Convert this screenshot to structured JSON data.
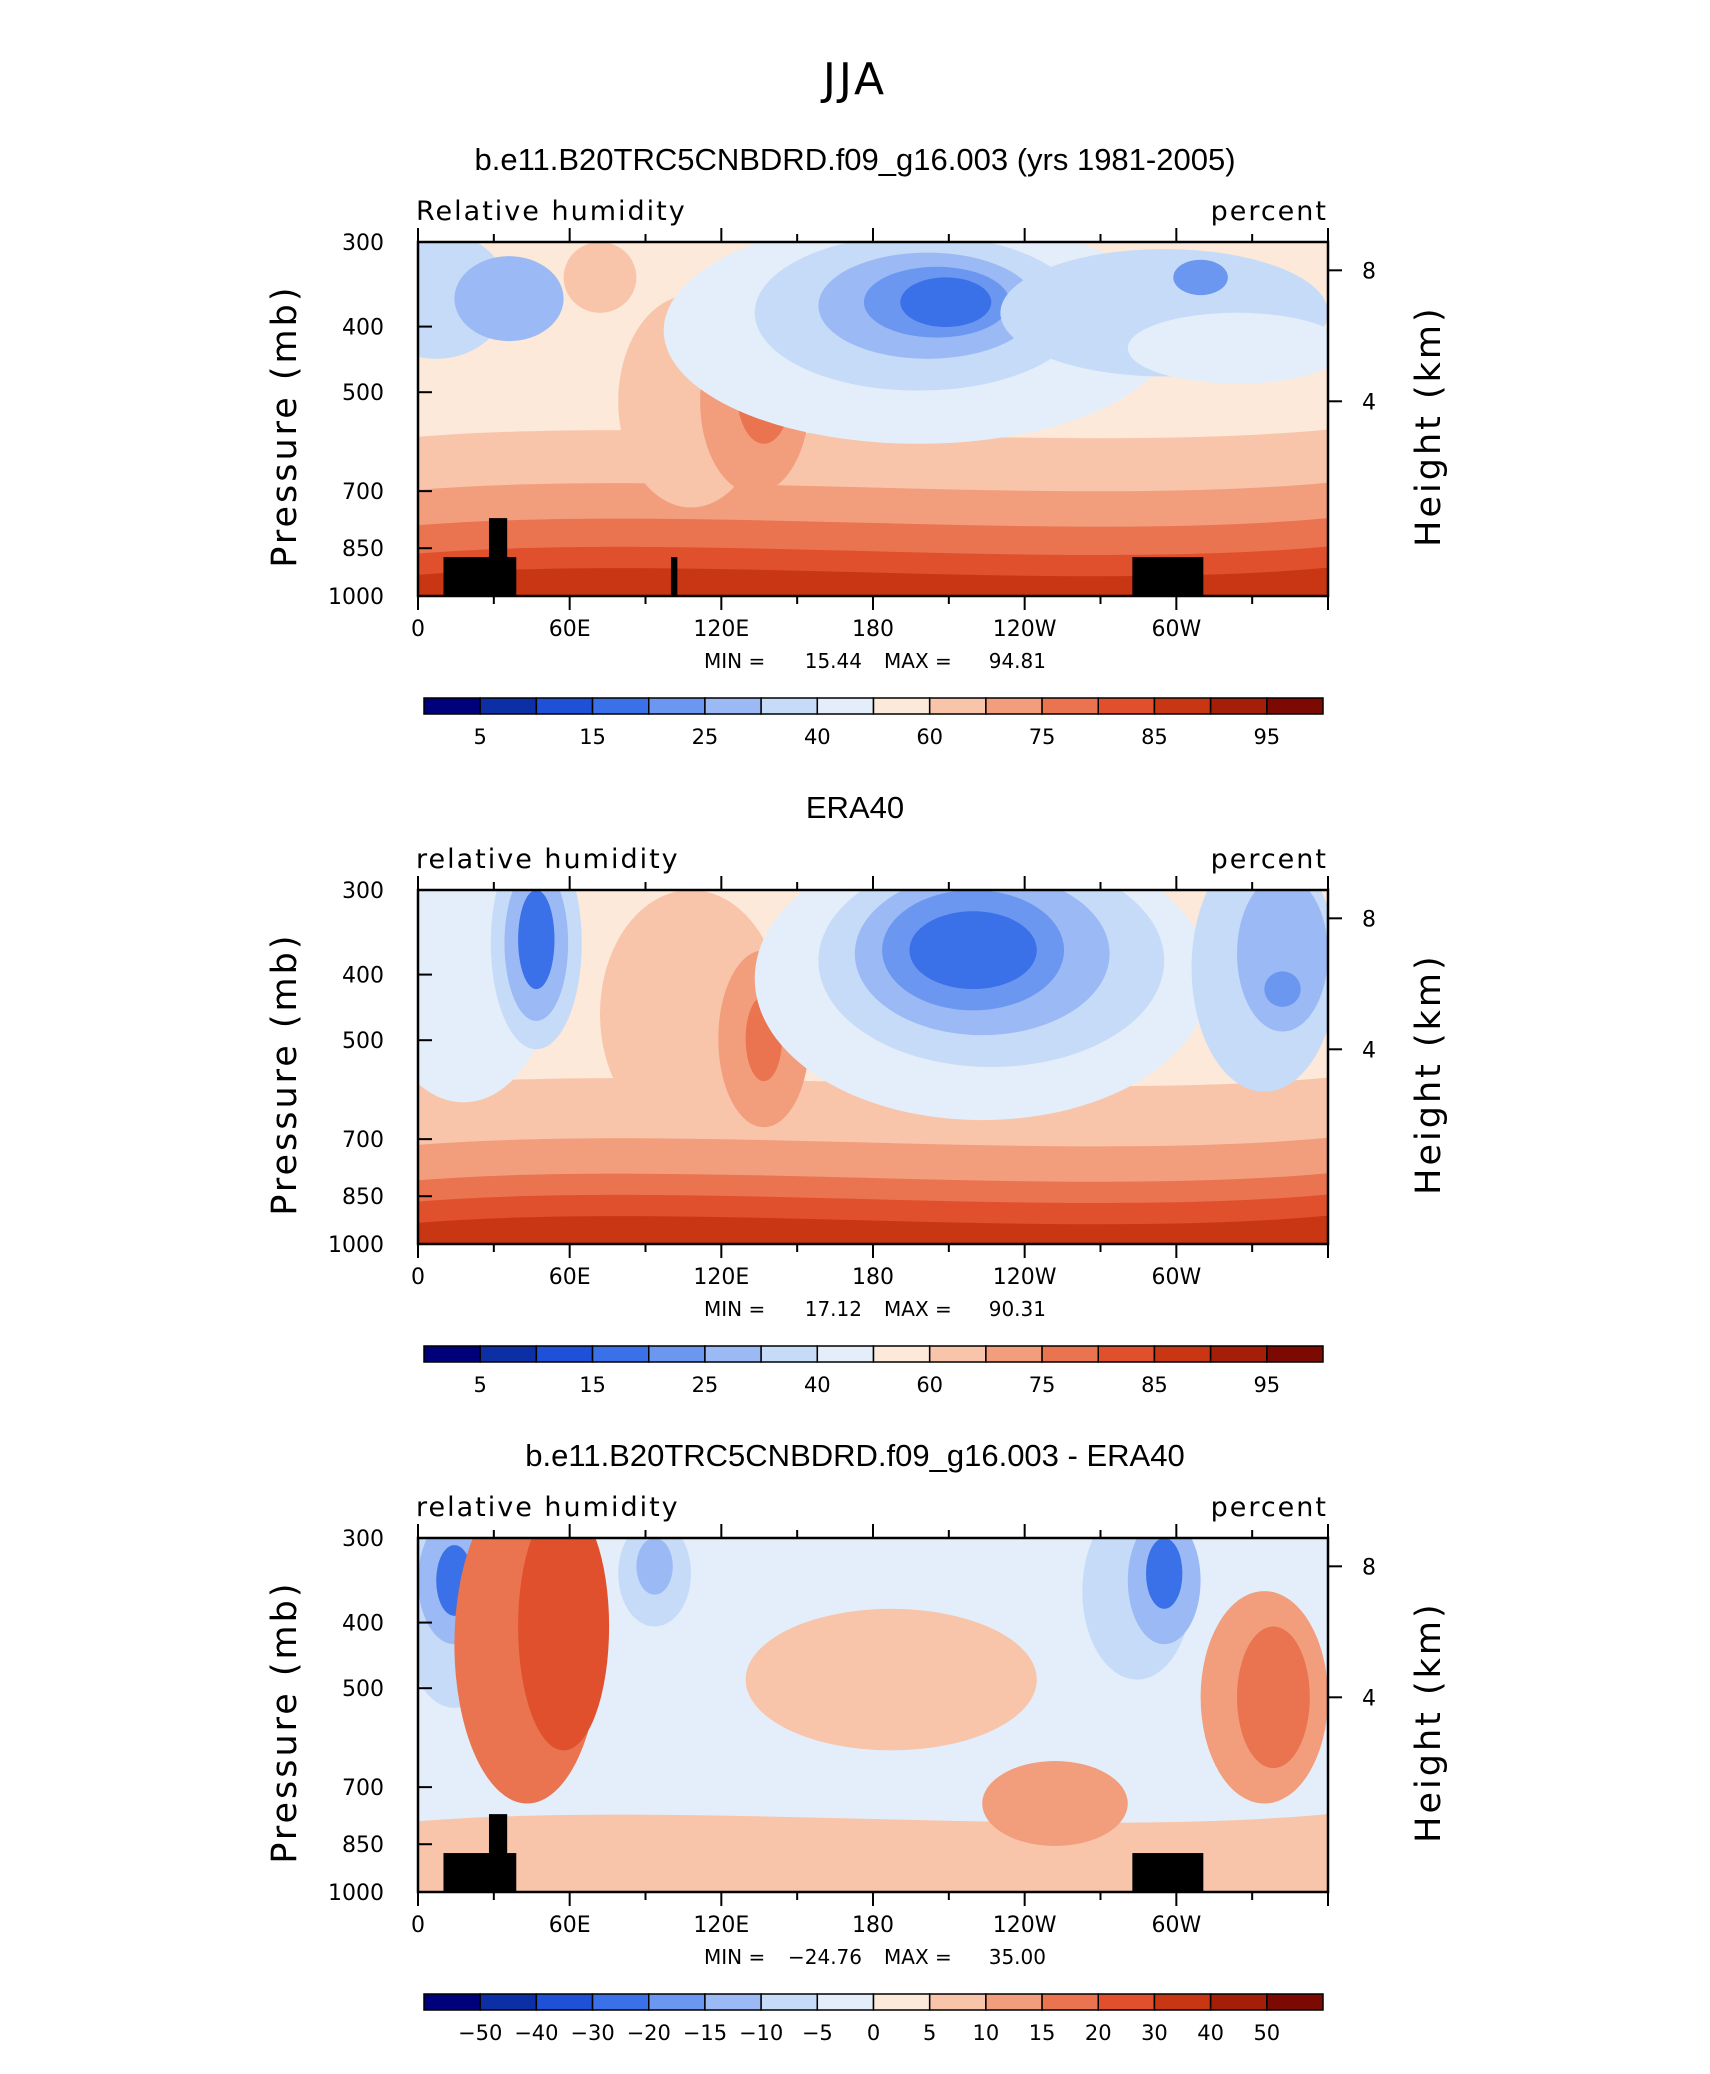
{
  "figure": {
    "title": "JJA"
  },
  "chart_data": [
    {
      "type": "heatmap",
      "title": "b.e11.B20TRC5CNBDRD.f09_g16.003 (yrs 1981-2005)",
      "left_label": "Relative humidity",
      "right_label": "percent",
      "ylabel": "Pressure (mb)",
      "y2label": "Height (km)",
      "x_ticks": [
        "0",
        "60E",
        "120E",
        "180",
        "120W",
        "60W"
      ],
      "y_ticks": [
        "300",
        "400",
        "500",
        "700",
        "850",
        "1000"
      ],
      "y2_ticks": [
        "8",
        "4"
      ],
      "ylim": [
        1000,
        300
      ],
      "min_label": "MIN =",
      "min": "15.44",
      "max_label": "MAX =",
      "max": "94.81",
      "colorbar_labels": [
        "5",
        "15",
        "25",
        "40",
        "60",
        "75",
        "85",
        "95"
      ],
      "colorbar_colors": [
        "#00007a",
        "#0d2fa6",
        "#1f50d8",
        "#3a71e8",
        "#6b97f0",
        "#9bbaf5",
        "#c6dbf8",
        "#e4eefa",
        "#fde9d9",
        "#f8c5aa",
        "#f29d7c",
        "#ea7350",
        "#e0502c",
        "#c93613",
        "#a41e08",
        "#7c0a02"
      ]
    },
    {
      "type": "heatmap",
      "title": "ERA40",
      "left_label": "relative humidity",
      "right_label": "percent",
      "ylabel": "Pressure (mb)",
      "y2label": "Height (km)",
      "x_ticks": [
        "0",
        "60E",
        "120E",
        "180",
        "120W",
        "60W"
      ],
      "y_ticks": [
        "300",
        "400",
        "500",
        "700",
        "850",
        "1000"
      ],
      "y2_ticks": [
        "8",
        "4"
      ],
      "ylim": [
        1000,
        300
      ],
      "min_label": "MIN =",
      "min": "17.12",
      "max_label": "MAX =",
      "max": "90.31",
      "colorbar_labels": [
        "5",
        "15",
        "25",
        "40",
        "60",
        "75",
        "85",
        "95"
      ],
      "colorbar_colors": [
        "#00007a",
        "#0d2fa6",
        "#1f50d8",
        "#3a71e8",
        "#6b97f0",
        "#9bbaf5",
        "#c6dbf8",
        "#e4eefa",
        "#fde9d9",
        "#f8c5aa",
        "#f29d7c",
        "#ea7350",
        "#e0502c",
        "#c93613",
        "#a41e08",
        "#7c0a02"
      ]
    },
    {
      "type": "heatmap",
      "title": "b.e11.B20TRC5CNBDRD.f09_g16.003 - ERA40",
      "left_label": "relative humidity",
      "right_label": "percent",
      "ylabel": "Pressure (mb)",
      "y2label": "Height (km)",
      "x_ticks": [
        "0",
        "60E",
        "120E",
        "180",
        "120W",
        "60W"
      ],
      "y_ticks": [
        "300",
        "400",
        "500",
        "700",
        "850",
        "1000"
      ],
      "y2_ticks": [
        "8",
        "4"
      ],
      "ylim": [
        1000,
        300
      ],
      "min_label": "MIN =",
      "min": "−24.76",
      "max_label": "MAX =",
      "max": "35.00",
      "colorbar_labels": [
        "−50",
        "−40",
        "−30",
        "−20",
        "−15",
        "−10",
        "−5",
        "0",
        "5",
        "10",
        "15",
        "20",
        "30",
        "40",
        "50"
      ],
      "colorbar_colors": [
        "#00007a",
        "#0d2fa6",
        "#1f50d8",
        "#3a71e8",
        "#6b97f0",
        "#9bbaf5",
        "#c6dbf8",
        "#e4eefa",
        "#fde9d9",
        "#f8c5aa",
        "#f29d7c",
        "#ea7350",
        "#e0502c",
        "#c93613",
        "#a41e08",
        "#7c0a02"
      ]
    }
  ]
}
